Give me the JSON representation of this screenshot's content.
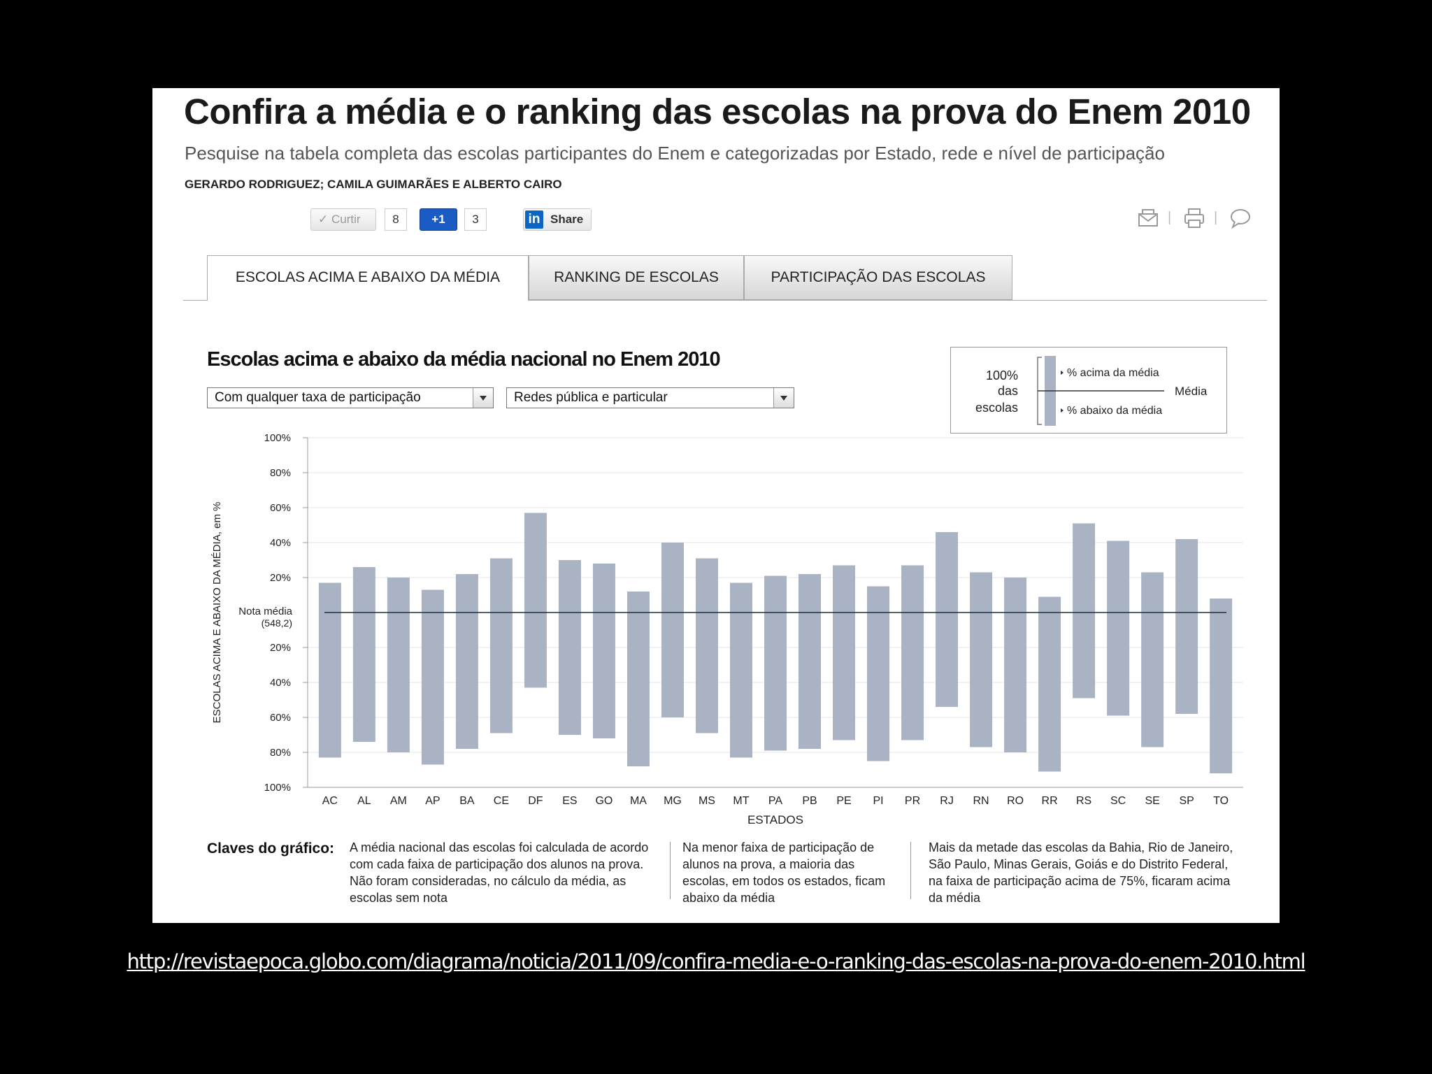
{
  "header": {
    "title": "Confira a média e o ranking das escolas na prova do Enem 2010",
    "subtitle": "Pesquise na tabela completa das escolas participantes do Enem e categorizadas por Estado, rede e nível de participação",
    "authors": "GERARDO RODRIGUEZ; CAMILA GUIMARÃES E ALBERTO CAIRO"
  },
  "social": {
    "like_label": "✓ Curtir",
    "like_count": "8",
    "plus_label": "+1",
    "plus_count": "3",
    "share_logo": "in",
    "share_label": "Share"
  },
  "tools": {
    "icons": [
      "email-icon",
      "print-icon",
      "comment-icon"
    ],
    "separator": "|"
  },
  "tabs": [
    {
      "label": "ESCOLAS ACIMA E ABAIXO DA MÉDIA",
      "active": true
    },
    {
      "label": "RANKING DE ESCOLAS",
      "active": false
    },
    {
      "label": "PARTICIPAÇÃO DAS ESCOLAS",
      "active": false
    }
  ],
  "filters": {
    "participation": "Com qualquer taxa de participação",
    "network": "Redes pública e particular"
  },
  "legend": {
    "left_line1": "100%",
    "left_line2": "das",
    "left_line3": "escolas",
    "above": "% acima da média",
    "below": "% abaixo da média",
    "mean": "Média"
  },
  "chart_data": {
    "type": "bar",
    "title": "Escolas acima e abaixo da média nacional no Enem 2010",
    "ylabel": "ESCOLAS ACIMA E ABAIXO DA MÉDIA, em %",
    "xlabel": "ESTADOS",
    "reference_label_1": "Nota média",
    "reference_label_2": "(548,2)",
    "y_ticks_above": [
      "100%",
      "80%",
      "60%",
      "40%",
      "20%"
    ],
    "y_ticks_below": [
      "20%",
      "40%",
      "60%",
      "80%",
      "100%"
    ],
    "ylim": [
      -100,
      100
    ],
    "bar_color": "#a9b3c4",
    "categories": [
      "AC",
      "AL",
      "AM",
      "AP",
      "BA",
      "CE",
      "DF",
      "ES",
      "GO",
      "MA",
      "MG",
      "MS",
      "MT",
      "PA",
      "PB",
      "PE",
      "PI",
      "PR",
      "RJ",
      "RN",
      "RO",
      "RR",
      "RS",
      "SC",
      "SE",
      "SP",
      "TO"
    ],
    "series": [
      {
        "name": "% acima da média",
        "values": [
          17,
          26,
          20,
          13,
          22,
          31,
          57,
          30,
          28,
          12,
          40,
          31,
          17,
          21,
          22,
          27,
          15,
          27,
          46,
          23,
          20,
          9,
          51,
          41,
          23,
          42,
          8
        ]
      },
      {
        "name": "% abaixo da média",
        "values": [
          83,
          74,
          80,
          87,
          78,
          69,
          43,
          70,
          72,
          88,
          60,
          69,
          83,
          79,
          78,
          73,
          85,
          73,
          54,
          77,
          80,
          91,
          49,
          59,
          77,
          58,
          92
        ]
      }
    ]
  },
  "keys": {
    "title": "Claves do gráfico:",
    "items": [
      "A média nacional das escolas foi calculada de acordo com cada faixa de participação dos alunos na prova. Não foram consideradas, no cálculo da média, as escolas sem nota",
      "Na menor faixa de participação de alunos na prova, a maioria das escolas, em todos os estados, ficam abaixo da média",
      "Mais da metade das escolas da Bahia, Rio de Janeiro, São Paulo, Minas Gerais, Goiás e do Distrito Federal, na faixa de participação acima de 75%, ficaram acima da média"
    ]
  },
  "footer": {
    "url": "http://revistaepoca.globo.com/diagrama/noticia/2011/09/confira-media-e-o-ranking-das-escolas-na-prova-do-enem-2010.html"
  }
}
